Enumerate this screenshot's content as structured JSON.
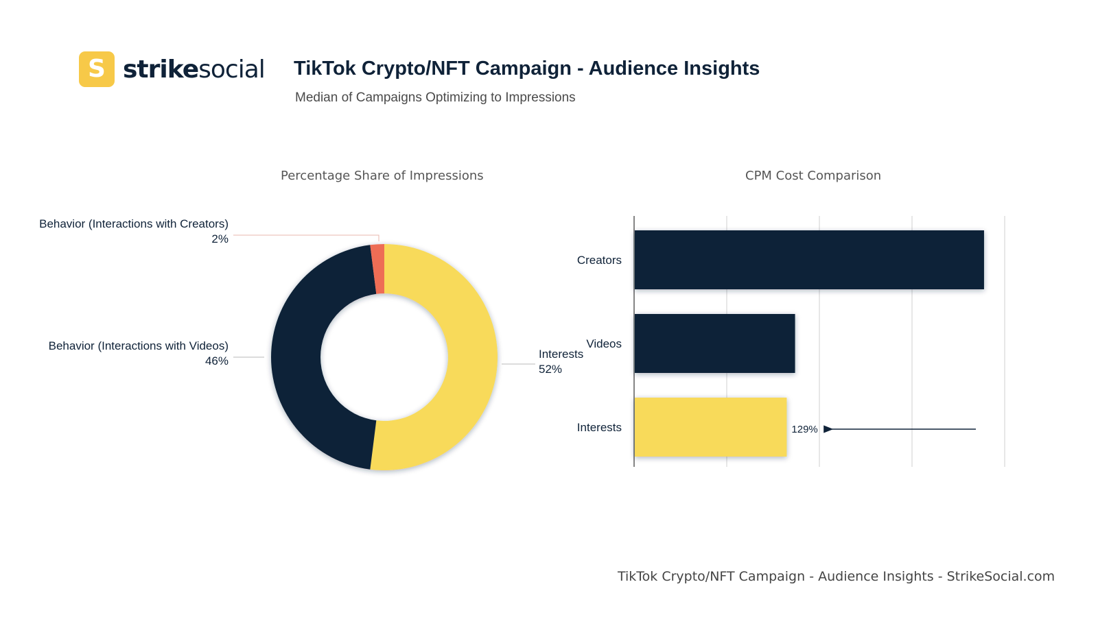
{
  "header": {
    "brand_strong": "strike",
    "brand_light": "social",
    "brand_mark": "S",
    "title": "TikTok Crypto/NFT Campaign - Audience Insights",
    "subtitle": "Median of Campaigns Optimizing to Impressions"
  },
  "footer": {
    "text": "TikTok Crypto/NFT Campaign - Audience Insights - StrikeSocial.com"
  },
  "colors": {
    "navy": "#0f2238",
    "yellow": "#f8da5a",
    "coral": "#ee6d55",
    "brand_yellow": "#f7c948"
  },
  "chart_data": [
    {
      "type": "pie",
      "title": "Percentage Share of Impressions",
      "donut": true,
      "slices": [
        {
          "label": "Interests",
          "value": 52,
          "value_label": "52%",
          "color": "#f8da5a"
        },
        {
          "label": "Behavior (Interactions with Videos)",
          "value": 46,
          "value_label": "46%",
          "color": "#0f2238"
        },
        {
          "label": "Behavior (Interactions with Creators)",
          "value": 2,
          "value_label": "2%",
          "color": "#ee6d55"
        }
      ]
    },
    {
      "type": "bar",
      "orientation": "horizontal",
      "title": "CPM Cost Comparison",
      "categories": [
        "Creators",
        "Videos",
        "Interests"
      ],
      "values": [
        3.77,
        1.73,
        1.64
      ],
      "colors": [
        "#0f2238",
        "#0f2238",
        "#f8da5a"
      ],
      "xlim": [
        0,
        4
      ],
      "grid": true,
      "annotations": [
        {
          "category": "Interests",
          "text": "129%",
          "arrow": true
        }
      ]
    }
  ]
}
